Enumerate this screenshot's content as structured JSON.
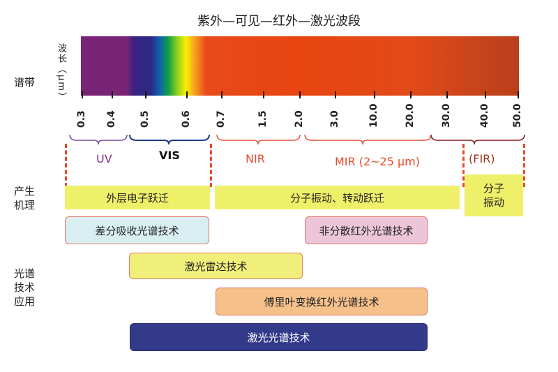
{
  "title": "紫外—可见—红外—激光波段",
  "side_labels": {
    "spectrum": "谱带",
    "mechanism_1": "产生",
    "mechanism_2": "机理",
    "application_1": "光谱",
    "application_2": "技术",
    "application_3": "应用"
  },
  "axis_label": "波长（μm）",
  "ticks": [
    "0.3",
    "0.4",
    "0.5",
    "0.6",
    "0.7",
    "1.5",
    "2.0",
    "3.0",
    "10.0",
    "20.0",
    "30.0",
    "40.0",
    "50.0"
  ],
  "bands": {
    "uv": "UV",
    "vis": "VIS",
    "nir": "NIR",
    "mir": "MIR (2~25 μm)",
    "fir": "(FIR)"
  },
  "mechanisms": {
    "electronic": "外层电子跃迁",
    "vib_rot": "分子振动、转动跃迁",
    "vib_1": "分子",
    "vib_2": "振动"
  },
  "techniques": {
    "doas": "差分吸收光谱技术",
    "ndir": "非分散红外光谱技术",
    "lidar": "激光雷达技术",
    "ftir": "傅里叶变换红外光谱技术",
    "laser": "激光光谱技术"
  },
  "colors": {
    "uv": "#7b4a9e",
    "vis": "#1e3a8a",
    "ir": "#e8553a",
    "fir": "#8b1a1a",
    "dash": "#e84a2a"
  }
}
